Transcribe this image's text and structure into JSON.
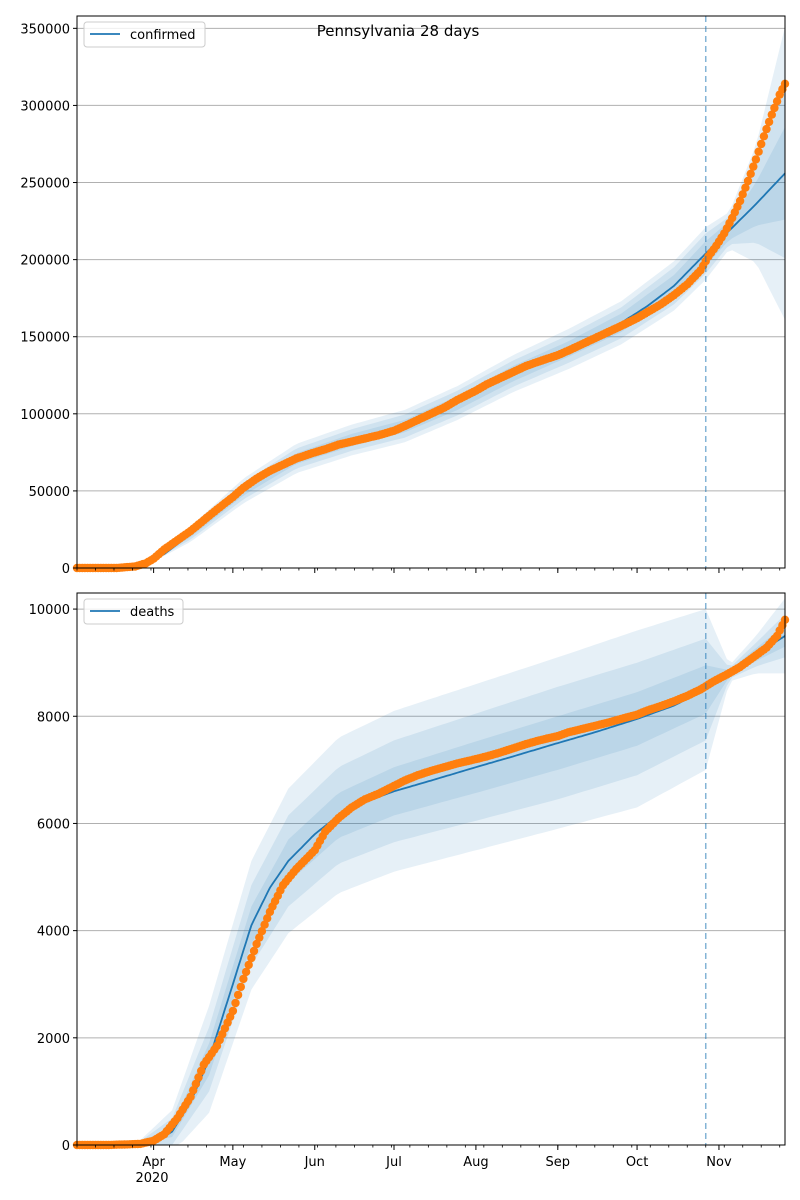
{
  "chart_data": [
    {
      "type": "line",
      "title": "Pennsylvania 28 days",
      "legend": {
        "entries": [
          "confirmed"
        ],
        "placement": "top-left"
      },
      "grid": "y",
      "x_ticks": [
        "Apr",
        "May",
        "Jun",
        "Jul",
        "Aug",
        "Sep",
        "Oct",
        "Nov"
      ],
      "x_tick_dates": [
        "2020-04-01",
        "2020-05-01",
        "2020-06-01",
        "2020-07-01",
        "2020-08-01",
        "2020-09-01",
        "2020-10-01",
        "2020-11-01"
      ],
      "x_year_label": "2020",
      "xlim": [
        "2020-03-03",
        "2020-11-26"
      ],
      "ylim": [
        0,
        358000
      ],
      "y_ticks": [
        0,
        50000,
        100000,
        150000,
        200000,
        250000,
        300000,
        350000
      ],
      "forecast_start": "2020-10-27",
      "colors": {
        "model": "#1f77b4",
        "observed": "#ff7f0e",
        "band": "#1f77b4",
        "vline": "#1f77b4"
      },
      "series": [
        {
          "name": "confirmed",
          "kind": "model",
          "x": [
            "2020-03-03",
            "2020-03-20",
            "2020-03-28",
            "2020-04-05",
            "2020-04-15",
            "2020-04-25",
            "2020-05-05",
            "2020-05-15",
            "2020-05-25",
            "2020-06-05",
            "2020-06-15",
            "2020-06-25",
            "2020-07-05",
            "2020-07-15",
            "2020-07-25",
            "2020-08-05",
            "2020-08-15",
            "2020-08-25",
            "2020-09-05",
            "2020-09-15",
            "2020-09-25",
            "2020-10-05",
            "2020-10-15",
            "2020-10-27",
            "2020-11-05",
            "2020-11-15",
            "2020-11-26"
          ],
          "y": [
            0,
            0,
            2000,
            9000,
            22000,
            36000,
            50000,
            62000,
            71000,
            78000,
            83000,
            87000,
            92000,
            99000,
            107000,
            117000,
            126000,
            134000,
            142000,
            150000,
            159000,
            170000,
            183000,
            204000,
            219000,
            236000,
            256000
          ]
        },
        {
          "name": "observed",
          "kind": "points",
          "x": [
            "2020-03-03",
            "2020-03-10",
            "2020-03-18",
            "2020-03-25",
            "2020-03-29",
            "2020-04-01",
            "2020-04-05",
            "2020-04-10",
            "2020-04-15",
            "2020-04-20",
            "2020-04-25",
            "2020-05-01",
            "2020-05-05",
            "2020-05-10",
            "2020-05-15",
            "2020-05-20",
            "2020-05-25",
            "2020-06-01",
            "2020-06-05",
            "2020-06-10",
            "2020-06-15",
            "2020-06-20",
            "2020-06-25",
            "2020-07-01",
            "2020-07-05",
            "2020-07-10",
            "2020-07-15",
            "2020-07-20",
            "2020-07-25",
            "2020-08-01",
            "2020-08-05",
            "2020-08-10",
            "2020-08-15",
            "2020-08-20",
            "2020-08-25",
            "2020-09-01",
            "2020-09-05",
            "2020-09-10",
            "2020-09-15",
            "2020-09-20",
            "2020-09-25",
            "2020-10-01",
            "2020-10-05",
            "2020-10-10",
            "2020-10-15",
            "2020-10-20",
            "2020-10-25",
            "2020-10-28",
            "2020-10-31",
            "2020-11-03",
            "2020-11-06",
            "2020-11-09",
            "2020-11-12",
            "2020-11-15",
            "2020-11-18",
            "2020-11-21",
            "2020-11-24",
            "2020-11-26"
          ],
          "y": [
            0,
            0,
            0,
            1000,
            3000,
            6000,
            12000,
            18000,
            24000,
            31000,
            38000,
            46000,
            52000,
            58000,
            63000,
            67000,
            71000,
            75000,
            77000,
            80000,
            82000,
            84000,
            86000,
            89000,
            92000,
            96000,
            100000,
            104000,
            109000,
            115000,
            119000,
            123000,
            127000,
            131000,
            134000,
            138000,
            141000,
            145000,
            149000,
            153000,
            157000,
            162000,
            166000,
            171000,
            177000,
            184000,
            193000,
            202000,
            209000,
            217000,
            227000,
            238000,
            251000,
            265000,
            280000,
            294000,
            307000,
            314000
          ]
        }
      ],
      "band": {
        "x": [
          "2020-03-03",
          "2020-03-28",
          "2020-04-15",
          "2020-05-05",
          "2020-05-25",
          "2020-06-15",
          "2020-07-05",
          "2020-07-25",
          "2020-08-15",
          "2020-09-05",
          "2020-09-25",
          "2020-10-15",
          "2020-10-27",
          "2020-11-05",
          "2020-11-15",
          "2020-11-26"
        ],
        "center": [
          0,
          2000,
          22000,
          50000,
          71000,
          83000,
          92000,
          107000,
          126000,
          142000,
          159000,
          183000,
          204000,
          219000,
          236000,
          256000
        ],
        "spread_inner": [
          0,
          500,
          2000,
          3000,
          3500,
          4000,
          4000,
          4500,
          5000,
          5000,
          6000,
          7000,
          8000,
          6000,
          14000,
          30000
        ],
        "spread_mid": [
          0,
          1000,
          3500,
          5500,
          6500,
          7000,
          7500,
          8000,
          8500,
          9000,
          10000,
          12000,
          13000,
          9000,
          25000,
          55000
        ],
        "spread_outer": [
          0,
          1500,
          5000,
          8000,
          9500,
          10000,
          10500,
          11000,
          12000,
          13000,
          14000,
          16000,
          17000,
          12000,
          38000,
          95000
        ]
      }
    },
    {
      "type": "line",
      "title": "",
      "legend": {
        "entries": [
          "deaths"
        ],
        "placement": "top-left"
      },
      "grid": "y",
      "x_ticks": [
        "Apr",
        "May",
        "Jun",
        "Jul",
        "Aug",
        "Sep",
        "Oct",
        "Nov"
      ],
      "x_tick_dates": [
        "2020-04-01",
        "2020-05-01",
        "2020-06-01",
        "2020-07-01",
        "2020-08-01",
        "2020-09-01",
        "2020-10-01",
        "2020-11-01"
      ],
      "x_year_label": "2020",
      "xlim": [
        "2020-03-03",
        "2020-11-26"
      ],
      "ylim": [
        0,
        10300
      ],
      "y_ticks": [
        0,
        2000,
        4000,
        6000,
        8000,
        10000
      ],
      "forecast_start": "2020-10-27",
      "colors": {
        "model": "#1f77b4",
        "observed": "#ff7f0e",
        "band": "#1f77b4",
        "vline": "#1f77b4"
      },
      "series": [
        {
          "name": "deaths",
          "kind": "model",
          "x": [
            "2020-03-03",
            "2020-03-25",
            "2020-04-01",
            "2020-04-08",
            "2020-04-15",
            "2020-04-22",
            "2020-05-01",
            "2020-05-08",
            "2020-05-15",
            "2020-05-22",
            "2020-06-01",
            "2020-06-10",
            "2020-06-20",
            "2020-07-01",
            "2020-07-15",
            "2020-08-01",
            "2020-08-15",
            "2020-09-01",
            "2020-09-15",
            "2020-10-01",
            "2020-10-15",
            "2020-10-27",
            "2020-11-05",
            "2020-11-15",
            "2020-11-26"
          ],
          "y": [
            0,
            0,
            30,
            250,
            800,
            1600,
            3000,
            4100,
            4800,
            5300,
            5800,
            6150,
            6400,
            6600,
            6800,
            7050,
            7250,
            7500,
            7700,
            7950,
            8200,
            8500,
            8800,
            9150,
            9500
          ]
        },
        {
          "name": "observed",
          "kind": "points",
          "x": [
            "2020-03-03",
            "2020-03-15",
            "2020-03-27",
            "2020-04-01",
            "2020-04-05",
            "2020-04-10",
            "2020-04-15",
            "2020-04-20",
            "2020-04-25",
            "2020-05-01",
            "2020-05-05",
            "2020-05-10",
            "2020-05-15",
            "2020-05-20",
            "2020-05-25",
            "2020-06-01",
            "2020-06-05",
            "2020-06-10",
            "2020-06-15",
            "2020-06-20",
            "2020-06-25",
            "2020-07-01",
            "2020-07-05",
            "2020-07-10",
            "2020-07-15",
            "2020-07-20",
            "2020-07-25",
            "2020-08-01",
            "2020-08-05",
            "2020-08-10",
            "2020-08-15",
            "2020-08-20",
            "2020-08-25",
            "2020-09-01",
            "2020-09-05",
            "2020-09-10",
            "2020-09-15",
            "2020-09-20",
            "2020-09-25",
            "2020-10-01",
            "2020-10-05",
            "2020-10-10",
            "2020-10-15",
            "2020-10-20",
            "2020-10-25",
            "2020-10-30",
            "2020-11-04",
            "2020-11-09",
            "2020-11-14",
            "2020-11-19",
            "2020-11-23",
            "2020-11-26"
          ],
          "y": [
            0,
            0,
            20,
            80,
            200,
            500,
            900,
            1500,
            1850,
            2500,
            3100,
            3750,
            4350,
            4850,
            5150,
            5500,
            5850,
            6100,
            6300,
            6450,
            6550,
            6700,
            6800,
            6900,
            6980,
            7050,
            7120,
            7200,
            7250,
            7320,
            7400,
            7480,
            7550,
            7630,
            7700,
            7760,
            7820,
            7880,
            7950,
            8030,
            8110,
            8190,
            8280,
            8380,
            8500,
            8650,
            8780,
            8920,
            9100,
            9280,
            9500,
            9800
          ]
        }
      ],
      "band": {
        "x": [
          "2020-03-03",
          "2020-03-25",
          "2020-04-08",
          "2020-04-22",
          "2020-05-08",
          "2020-05-22",
          "2020-06-10",
          "2020-07-01",
          "2020-08-01",
          "2020-09-01",
          "2020-10-01",
          "2020-10-27",
          "2020-11-05",
          "2020-11-15",
          "2020-11-26"
        ],
        "center": [
          0,
          0,
          250,
          1600,
          4100,
          5300,
          6150,
          6600,
          7050,
          7500,
          7950,
          8500,
          8800,
          9150,
          9500
        ],
        "spread_inner": [
          0,
          0,
          100,
          300,
          350,
          400,
          420,
          450,
          480,
          500,
          500,
          450,
          60,
          120,
          200
        ],
        "spread_mid": [
          0,
          0,
          250,
          600,
          750,
          850,
          900,
          950,
          1000,
          1050,
          1050,
          950,
          100,
          220,
          400
        ],
        "spread_outer": [
          0,
          0,
          400,
          1000,
          1200,
          1350,
          1450,
          1500,
          1550,
          1600,
          1650,
          1500,
          150,
          350,
          700
        ]
      }
    }
  ]
}
